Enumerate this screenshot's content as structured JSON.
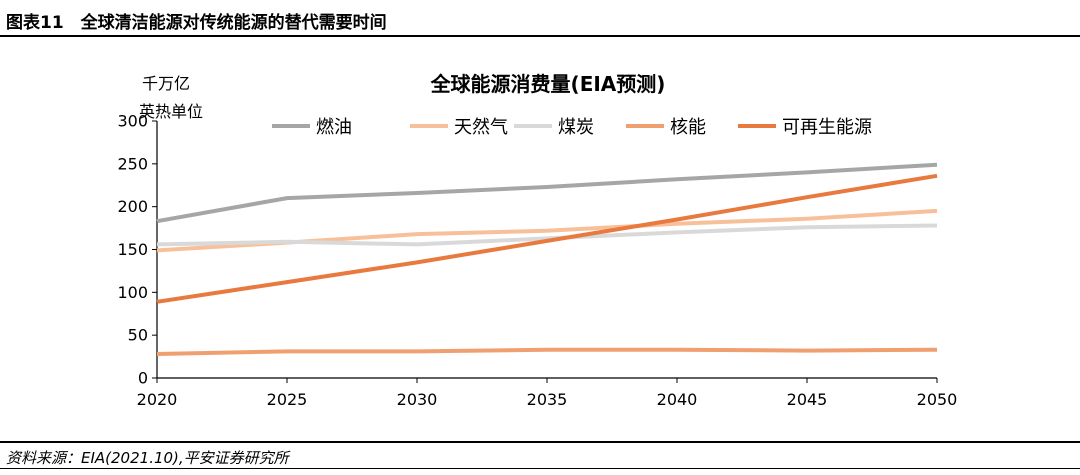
{
  "header": {
    "title": "图表11　全球清洁能源对传统能源的替代需要时间"
  },
  "footer": {
    "source": "资料来源：EIA(2021.10),平安证券研究所"
  },
  "chart_data": {
    "type": "line",
    "title": "全球能源消费量(EIA预测)",
    "ylabel_lines": [
      "千万亿",
      "英热单位"
    ],
    "xlabel": "",
    "x": [
      2020,
      2025,
      2030,
      2035,
      2040,
      2045,
      2050
    ],
    "xlim": [
      2020,
      2050
    ],
    "ylim": [
      0,
      300
    ],
    "yticks": [
      0,
      50,
      100,
      150,
      200,
      250,
      300
    ],
    "xticks": [
      2020,
      2025,
      2030,
      2035,
      2040,
      2045,
      2050
    ],
    "grid": false,
    "legend_position": "top",
    "series": [
      {
        "name": "燃油",
        "color": "#a6a6a6",
        "values": [
          183,
          210,
          216,
          223,
          232,
          240,
          249
        ]
      },
      {
        "name": "天然气",
        "color": "#f8c09a",
        "values": [
          149,
          158,
          168,
          172,
          180,
          186,
          195
        ]
      },
      {
        "name": "煤炭",
        "color": "#d9d9d9",
        "values": [
          156,
          159,
          156,
          163,
          170,
          176,
          178
        ]
      },
      {
        "name": "核能",
        "color": "#f0a070",
        "values": [
          28,
          31,
          31,
          33,
          33,
          32,
          33
        ]
      },
      {
        "name": "可再生能源",
        "color": "#e8793f",
        "values": [
          89,
          112,
          135,
          160,
          185,
          211,
          236
        ]
      }
    ]
  }
}
